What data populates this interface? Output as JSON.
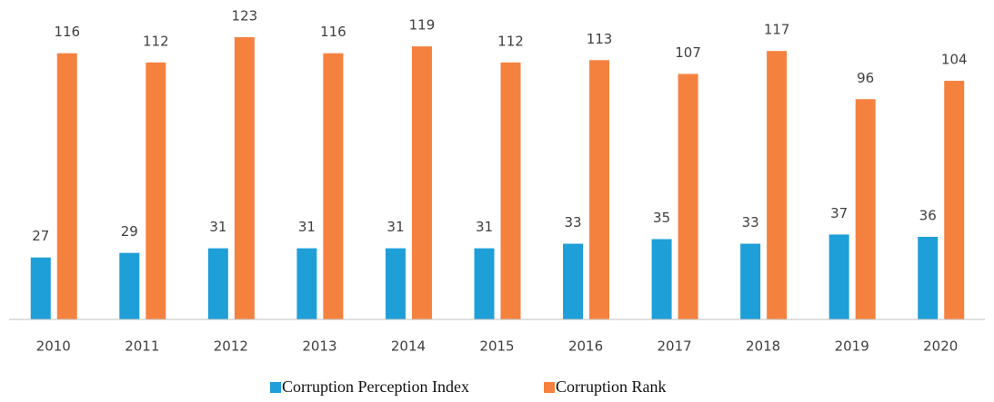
{
  "chart_data": {
    "type": "bar",
    "categories": [
      "2010",
      "2011",
      "2012",
      "2013",
      "2014",
      "2015",
      "2016",
      "2017",
      "2018",
      "2019",
      "2020"
    ],
    "series": [
      {
        "name": "Corruption Perception Index",
        "color": "#1f9fd8",
        "values": [
          27,
          29,
          31,
          31,
          31,
          31,
          33,
          35,
          33,
          37,
          36
        ]
      },
      {
        "name": "Corruption Rank",
        "color": "#f5813f",
        "values": [
          116,
          112,
          123,
          116,
          119,
          112,
          113,
          107,
          117,
          96,
          104
        ]
      }
    ],
    "legend": "bottom"
  }
}
